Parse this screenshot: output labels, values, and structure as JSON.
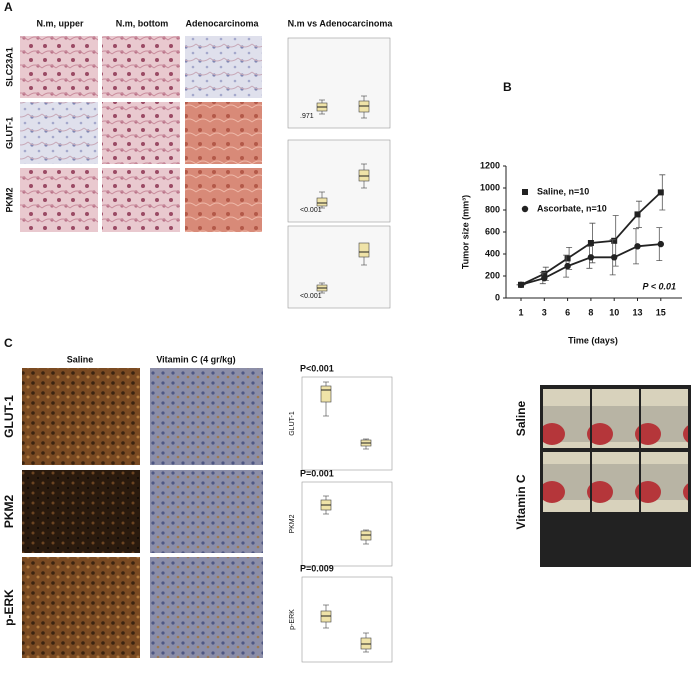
{
  "panel_a": {
    "label": "A",
    "columns": [
      "N.m, upper",
      "N.m, bottom",
      "Adenocarcinoma",
      "N.m vs Adenocarcinoma"
    ],
    "rows": [
      "SLC23A1",
      "GLUT-1",
      "PKM2"
    ],
    "p_values": [
      ".971",
      "<0.001",
      "<0.001"
    ]
  },
  "panel_b_label": "B",
  "chart_data": {
    "type": "line",
    "y_label": "Tumor size (mm³)",
    "x_label": "Time (days)",
    "categories": [
      "1",
      "3",
      "6",
      "8",
      "10",
      "13",
      "15"
    ],
    "series": [
      {
        "name": "Saline, n=10",
        "color": "#222222",
        "marker": "square",
        "values": [
          120,
          220,
          360,
          500,
          520,
          760,
          960
        ],
        "errors": [
          0,
          60,
          100,
          180,
          230,
          120,
          160
        ]
      },
      {
        "name": "Ascorbate, n=10",
        "color": "#222222",
        "marker": "circle",
        "values": [
          120,
          180,
          290,
          370,
          370,
          470,
          490
        ],
        "errors": [
          0,
          50,
          100,
          100,
          160,
          160,
          150
        ]
      }
    ],
    "ylim": [
      0,
      1200
    ],
    "yticks": [
      0,
      200,
      400,
      600,
      800,
      1000,
      1200
    ],
    "annotation": "P < 0.01",
    "legend": "top-left"
  },
  "panel_c": {
    "label": "C",
    "columns": [
      "Saline",
      "Vitamin C (4 gr/kg)"
    ],
    "rows": [
      "GLUT-1",
      "PKM2",
      "p-ERK"
    ],
    "p_values": [
      "P<0.001",
      "P=0.001",
      "P=0.009"
    ]
  },
  "panel_photos": {
    "rows": [
      "Saline",
      "Vitamin C"
    ]
  }
}
